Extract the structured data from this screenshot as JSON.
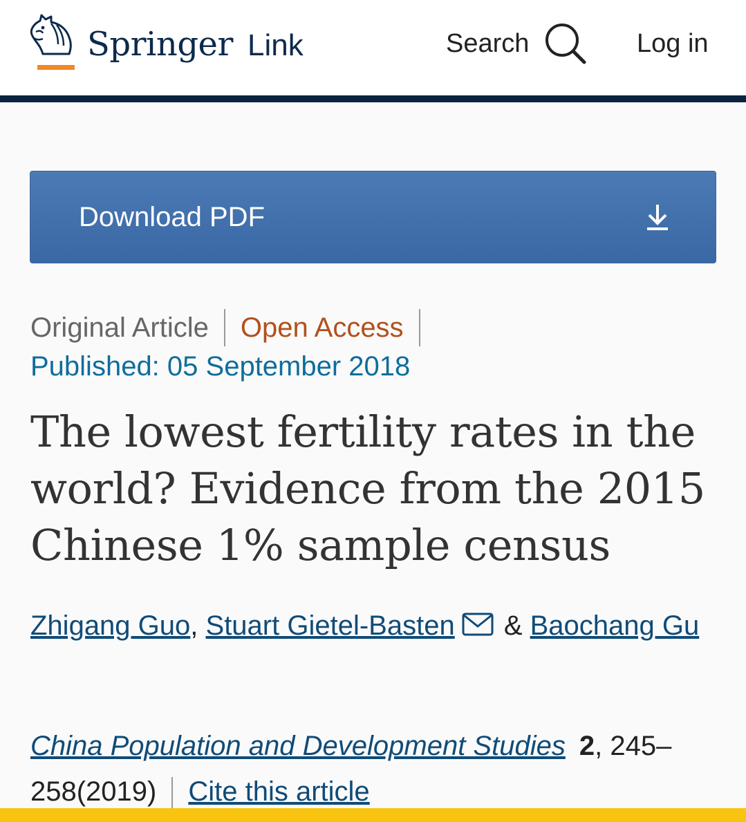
{
  "header": {
    "logo_springer": "Springer",
    "logo_link": "Link",
    "search_label": "Search",
    "login_label": "Log in"
  },
  "download": {
    "label": "Download PDF"
  },
  "article": {
    "type": "Original Article",
    "access": "Open Access",
    "published": "Published: 05 September 2018",
    "title": "The lowest fertility rates in the world? Evidence from the 2015 Chinese 1% sample census",
    "authors": [
      {
        "name": "Zhigang Guo",
        "separator": ", "
      },
      {
        "name": "Stuart Gietel-Basten",
        "separator": " & "
      },
      {
        "name": "Baochang Gu",
        "separator": ""
      }
    ],
    "journal": "China Population and Development Studies",
    "volume": "2",
    "pages_year": ", 245–258(2019)",
    "cite_label": "Cite this article"
  },
  "colors": {
    "navy": "#0c2340",
    "download_blue": "#4070ad",
    "open_access": "#b3501c",
    "published": "#0f6d9b",
    "link": "#0f4b78",
    "accent_orange": "#f08a24",
    "bottom_bar": "#f8c410"
  },
  "icons": {
    "logo": "springer-horse-icon",
    "search": "search-icon",
    "download": "download-icon",
    "mail": "mail-icon"
  }
}
